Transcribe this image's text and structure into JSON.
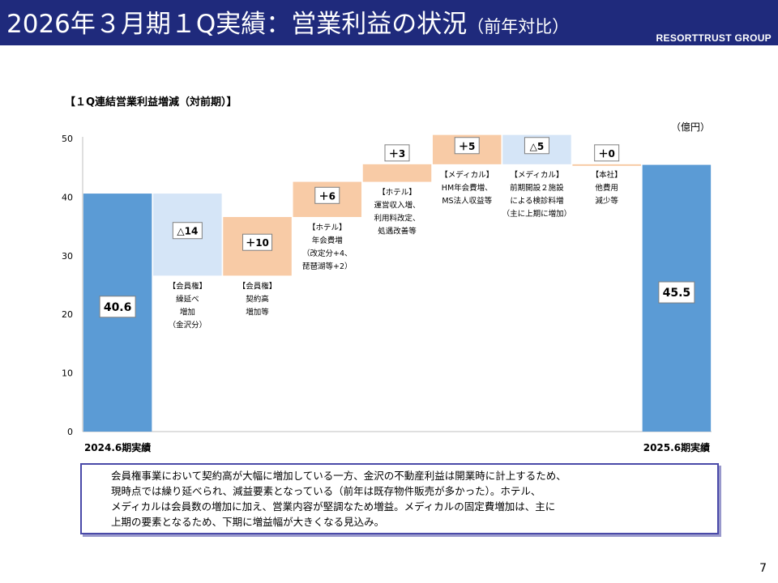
{
  "header": {
    "title": "2026年３月期１Q実績：営業利益の状況",
    "subtitle": "（前年対比）",
    "brand": "RESORTTRUST GROUP"
  },
  "chart_data": {
    "type": "bar",
    "title": "【１Q連結営業利益増減（対前期）】",
    "unit": "（億円）",
    "ylim": [
      0,
      50
    ],
    "yticks": [
      "0",
      "10",
      "20",
      "30",
      "40",
      "50"
    ],
    "grid": false,
    "endpoints": [
      {
        "label": "2024.6期実績",
        "value": 40.6,
        "value_label": "40.6"
      },
      {
        "label": "2025.6期実績",
        "value": 45.5,
        "value_label": "45.5"
      }
    ],
    "steps": [
      {
        "delta": -14,
        "value_label": "△14",
        "kind": "decrease",
        "note": [
          "【会員権】",
          "繰延べ",
          "増加",
          "（金沢分）"
        ]
      },
      {
        "delta": 10,
        "value_label": "＋10",
        "kind": "increase",
        "note": [
          "【会員権】",
          "契約高",
          "増加等"
        ]
      },
      {
        "delta": 6,
        "value_label": "＋6",
        "kind": "increase",
        "note": [
          "【ホテル】",
          "年会費増",
          "（改定分+4、",
          "琵琶湖等+2）"
        ]
      },
      {
        "delta": 3,
        "value_label": "＋3",
        "kind": "increase",
        "note": [
          "【ホテル】",
          "運営収入増、",
          "利用料改定、",
          "処遇改善等"
        ]
      },
      {
        "delta": 5,
        "value_label": "＋5",
        "kind": "increase",
        "note": [
          "【メディカル】",
          "HM年会費増、",
          "MS法人収益等"
        ]
      },
      {
        "delta": -5,
        "value_label": "△5",
        "kind": "decrease",
        "note": [
          "【メディカル】",
          "前期開設２施設",
          "による検診料増",
          "（主に上期に増加）"
        ]
      },
      {
        "delta": 0,
        "value_label": "＋0",
        "kind": "increase",
        "note": [
          "【本社】",
          "他費用",
          "減少等"
        ]
      }
    ],
    "colors": {
      "endpoint": "#5b9bd5",
      "increase": "#f8cba6",
      "decrease": "#d5e5f7"
    }
  },
  "comment": {
    "lines": [
      "会員権事業において契約高が大幅に増加している一方、金沢の不動産利益は開業時に計上するため、",
      "現時点では繰り延べられ、減益要素となっている（前年は既存物件販売が多かった）。ホテル、",
      "メディカルは会員数の増加に加え、営業内容が堅調なため増益。メディカルの固定費増加は、主に",
      "上期の要素となるため、下期に増益幅が大きくなる見込み。"
    ]
  },
  "page_number": "7"
}
